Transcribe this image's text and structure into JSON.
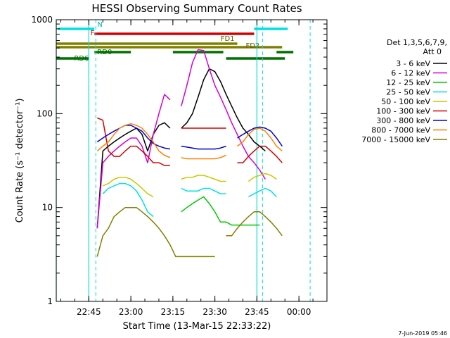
{
  "chart_data": {
    "type": "line",
    "title": "HESSI Observing Summary Count Rates",
    "xlabel": "Start Time (13-Mar-15 22:33:22)",
    "ylabel": "Count Rate (s⁻¹ detector⁻¹)",
    "y_scale": "log",
    "ylim": [
      1,
      1000
    ],
    "xlim": [
      "22:33:22",
      "00:10:00"
    ],
    "x_ticks": [
      "22:45",
      "23:00",
      "23:15",
      "23:30",
      "23:45",
      "00:00"
    ],
    "y_ticks": [
      "1",
      "10",
      "100",
      "1000"
    ],
    "grid": false,
    "legend_position": "right",
    "legend_title": [
      "Det 1,3,5,6,7,9,",
      "Att 0"
    ],
    "footer": "7-Jun-2019 05:46",
    "x": [
      "22:40",
      "22:42",
      "22:44",
      "22:46",
      "22:48",
      "22:50",
      "22:52",
      "22:54",
      "22:56",
      "22:58",
      "23:00",
      "23:02",
      "23:04",
      "23:06",
      "23:08",
      "23:10",
      "23:12",
      "23:14",
      "23:16",
      "23:18",
      "23:20",
      "23:22",
      "23:24",
      "23:26",
      "23:28",
      "23:30",
      "23:32",
      "23:34",
      "23:36",
      "23:38",
      "23:40",
      "23:42",
      "23:44",
      "23:46",
      "23:48",
      "23:50",
      "23:52",
      "23:54"
    ],
    "series": [
      {
        "name": "3 - 6 keV",
        "color": "#000000",
        "values": [
          null,
          null,
          null,
          null,
          6,
          40,
          45,
          50,
          55,
          60,
          65,
          70,
          60,
          40,
          60,
          75,
          80,
          70,
          null,
          70,
          80,
          100,
          150,
          230,
          300,
          280,
          220,
          160,
          120,
          90,
          70,
          60,
          50,
          45,
          40,
          null,
          30,
          null
        ]
      },
      {
        "name": "6 - 12 keV",
        "color": "#d400d4",
        "values": [
          null,
          null,
          null,
          null,
          6,
          30,
          35,
          40,
          45,
          50,
          55,
          55,
          45,
          30,
          60,
          100,
          160,
          140,
          null,
          120,
          200,
          350,
          480,
          470,
          300,
          200,
          150,
          110,
          80,
          60,
          45,
          35,
          30,
          25,
          20,
          null,
          15,
          null
        ]
      },
      {
        "name": "12 - 25 keV",
        "color": "#00c800",
        "values": [
          null,
          null,
          null,
          null,
          null,
          null,
          null,
          null,
          null,
          null,
          null,
          null,
          null,
          null,
          null,
          null,
          null,
          null,
          null,
          9,
          10,
          11,
          12,
          13,
          11,
          9,
          7,
          7,
          6.5,
          6.5,
          6.5,
          6.5,
          6.5,
          6.5,
          null,
          null,
          null,
          null
        ]
      },
      {
        "name": "25 - 50 keV",
        "color": "#00e0e0",
        "values": [
          null,
          null,
          null,
          null,
          null,
          14,
          16,
          17,
          18,
          18,
          17,
          15,
          12,
          9,
          8,
          null,
          null,
          null,
          null,
          16,
          15,
          15,
          15,
          16,
          16,
          15,
          14,
          14,
          null,
          null,
          null,
          13,
          14,
          15,
          16,
          15,
          13,
          null
        ]
      },
      {
        "name": "50 - 100 keV",
        "color": "#c8c800",
        "values": [
          null,
          null,
          null,
          null,
          null,
          17,
          18,
          20,
          21,
          21,
          20,
          18,
          16,
          14,
          13,
          null,
          null,
          null,
          null,
          20,
          21,
          21,
          22,
          22,
          21,
          20,
          19,
          19,
          null,
          null,
          null,
          19,
          21,
          22,
          23,
          22,
          20,
          null
        ]
      },
      {
        "name": "100 - 300 keV",
        "color": "#d40000",
        "values": [
          null,
          null,
          null,
          null,
          90,
          85,
          40,
          35,
          35,
          40,
          45,
          45,
          40,
          35,
          30,
          30,
          28,
          28,
          null,
          70,
          70,
          70,
          70,
          70,
          70,
          70,
          70,
          70,
          null,
          30,
          30,
          35,
          40,
          45,
          45,
          40,
          35,
          30
        ]
      },
      {
        "name": "300 - 800 keV",
        "color": "#0000d4",
        "values": [
          null,
          null,
          null,
          null,
          50,
          55,
          60,
          65,
          70,
          75,
          75,
          70,
          65,
          55,
          48,
          45,
          43,
          42,
          null,
          45,
          44,
          43,
          42,
          42,
          42,
          42,
          43,
          45,
          null,
          55,
          60,
          65,
          70,
          72,
          70,
          65,
          55,
          45
        ]
      },
      {
        "name": "800 - 7000 keV",
        "color": "#ff8000",
        "values": [
          null,
          null,
          null,
          null,
          40,
          45,
          50,
          60,
          70,
          75,
          78,
          75,
          70,
          60,
          50,
          40,
          36,
          34,
          null,
          34,
          33,
          33,
          33,
          33,
          33,
          33,
          34,
          36,
          null,
          45,
          50,
          60,
          68,
          70,
          65,
          55,
          45,
          40
        ]
      },
      {
        "name": "7000 - 15000 keV",
        "color": "#808000",
        "values": [
          null,
          null,
          null,
          null,
          3,
          5,
          6,
          8,
          9,
          10,
          10,
          10,
          9,
          8,
          7,
          6,
          5,
          4,
          3,
          3,
          3,
          3,
          3,
          3,
          3,
          3,
          null,
          5,
          5,
          6,
          7,
          8,
          9,
          9,
          8,
          7,
          6,
          5
        ]
      }
    ],
    "flags": [
      {
        "label": "N",
        "color": "#00e0e0",
        "segments": [
          [
            "22:34",
            "22:47"
          ],
          [
            "23:44",
            "23:56"
          ]
        ]
      },
      {
        "label": "F",
        "color": "#d40000",
        "segments": [
          [
            "22:47",
            "23:44"
          ]
        ]
      },
      {
        "label": "FD1",
        "color": "#808000",
        "segments": [
          [
            "22:33",
            "23:38"
          ]
        ]
      },
      {
        "label": "FD2",
        "color": "#808000",
        "segments": [
          [
            "22:33",
            "23:54"
          ]
        ]
      },
      {
        "label": "RD0",
        "color": "#007000",
        "segments": [
          [
            "22:47",
            "23:00"
          ],
          [
            "23:15",
            "23:33"
          ],
          [
            "23:52",
            "23:58"
          ]
        ]
      },
      {
        "label": "RD6",
        "color": "#007000",
        "segments": [
          [
            "22:33",
            "22:45"
          ],
          [
            "23:34",
            "23:55"
          ]
        ]
      }
    ],
    "markers": {
      "solid": [
        "22:33:22",
        "22:45:00",
        "23:45:00"
      ],
      "dashed": [
        "22:47:30",
        "23:47:00",
        "00:04:00"
      ]
    }
  }
}
